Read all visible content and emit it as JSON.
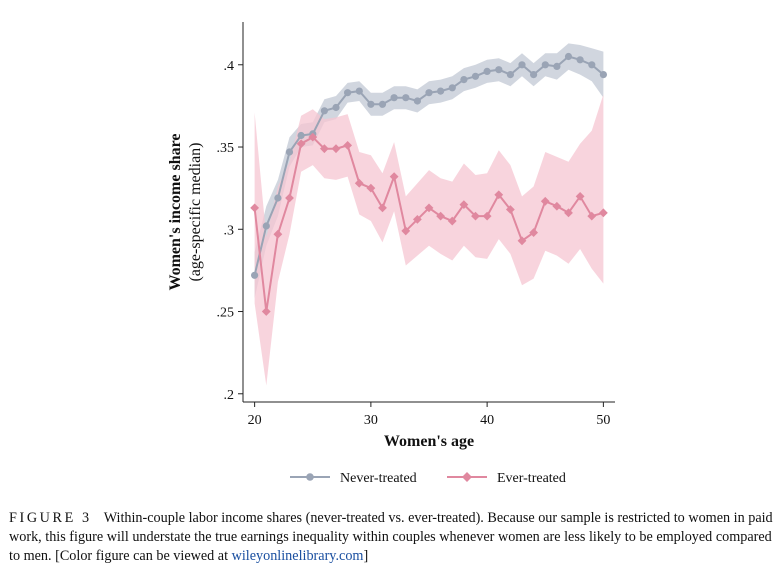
{
  "chart_data": {
    "type": "line",
    "xlabel": "Women's age",
    "ylabel_line1": "Women's income share",
    "ylabel_line2": "(age-specific median)",
    "xlim": [
      19,
      51
    ],
    "ylim": [
      0.195,
      0.426
    ],
    "x_ticks": [
      20,
      30,
      40,
      50
    ],
    "x_tick_labels": [
      "20",
      "30",
      "40",
      "50"
    ],
    "y_ticks": [
      0.2,
      0.25,
      0.3,
      0.35,
      0.4
    ],
    "y_tick_labels": [
      ".2",
      ".25",
      ".3",
      ".35",
      ".4"
    ],
    "grid": false,
    "legend_position": "bottom",
    "x": [
      20,
      21,
      22,
      23,
      24,
      25,
      26,
      27,
      28,
      29,
      30,
      31,
      32,
      33,
      34,
      35,
      36,
      37,
      38,
      39,
      40,
      41,
      42,
      43,
      44,
      45,
      46,
      47,
      48,
      49,
      50
    ],
    "series": [
      {
        "name": "Never-treated",
        "color": "#9aa4b5",
        "band_color": "#c2c8d4",
        "marker": "circle",
        "values": [
          0.272,
          0.302,
          0.319,
          0.347,
          0.357,
          0.358,
          0.372,
          0.374,
          0.383,
          0.384,
          0.376,
          0.376,
          0.38,
          0.38,
          0.378,
          0.383,
          0.384,
          0.386,
          0.391,
          0.393,
          0.396,
          0.397,
          0.394,
          0.4,
          0.394,
          0.4,
          0.399,
          0.405,
          0.403,
          0.4,
          0.394
        ],
        "lower": [
          0.258,
          0.29,
          0.308,
          0.338,
          0.35,
          0.351,
          0.365,
          0.367,
          0.377,
          0.378,
          0.369,
          0.369,
          0.373,
          0.373,
          0.371,
          0.376,
          0.377,
          0.379,
          0.384,
          0.386,
          0.389,
          0.39,
          0.387,
          0.393,
          0.387,
          0.393,
          0.391,
          0.397,
          0.394,
          0.39,
          0.38
        ],
        "upper": [
          0.286,
          0.314,
          0.33,
          0.356,
          0.364,
          0.365,
          0.379,
          0.381,
          0.389,
          0.39,
          0.383,
          0.383,
          0.387,
          0.387,
          0.385,
          0.39,
          0.391,
          0.393,
          0.398,
          0.4,
          0.403,
          0.404,
          0.401,
          0.407,
          0.401,
          0.407,
          0.407,
          0.413,
          0.412,
          0.41,
          0.408
        ]
      },
      {
        "name": "Ever-treated",
        "color": "#e0889f",
        "band_color": "#f5c6d2",
        "marker": "diamond",
        "values": [
          0.313,
          0.25,
          0.297,
          0.319,
          0.352,
          0.356,
          0.349,
          0.349,
          0.351,
          0.328,
          0.325,
          0.313,
          0.332,
          0.299,
          0.306,
          0.313,
          0.308,
          0.305,
          0.315,
          0.308,
          0.308,
          0.321,
          0.312,
          0.293,
          0.298,
          0.317,
          0.314,
          0.31,
          0.32,
          0.308,
          0.31
        ],
        "lower": [
          0.255,
          0.205,
          0.268,
          0.297,
          0.335,
          0.339,
          0.331,
          0.33,
          0.332,
          0.309,
          0.305,
          0.292,
          0.311,
          0.278,
          0.284,
          0.29,
          0.285,
          0.281,
          0.29,
          0.283,
          0.282,
          0.294,
          0.285,
          0.266,
          0.27,
          0.287,
          0.284,
          0.279,
          0.288,
          0.276,
          0.267
        ],
        "upper": [
          0.371,
          0.295,
          0.326,
          0.341,
          0.369,
          0.373,
          0.367,
          0.368,
          0.37,
          0.347,
          0.345,
          0.334,
          0.353,
          0.32,
          0.328,
          0.336,
          0.331,
          0.329,
          0.34,
          0.333,
          0.334,
          0.348,
          0.339,
          0.32,
          0.326,
          0.347,
          0.344,
          0.341,
          0.352,
          0.36,
          0.382
        ]
      }
    ]
  },
  "caption": {
    "label": "FIGURE 3",
    "text": "Within-couple labor income shares (never-treated vs. ever-treated). Because our sample is restricted to women in paid work, this figure will understate the true earnings inequality within couples whenever women are less likely to be employed compared to men. [Color figure can be viewed at ",
    "link": "wileyonlinelibrary.com",
    "end": "]"
  }
}
